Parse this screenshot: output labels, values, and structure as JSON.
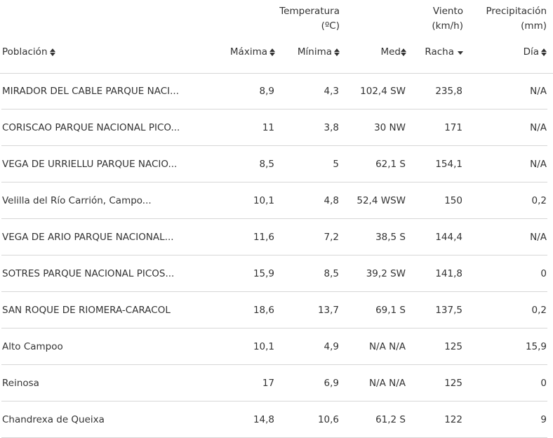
{
  "header": {
    "groups": {
      "temperatura": [
        "Temperatura",
        "(ºC)"
      ],
      "viento": [
        "Viento",
        "(km/h)"
      ],
      "precipitacion": [
        "Precipitación",
        "(mm)"
      ]
    },
    "columns": {
      "poblacion": "Población",
      "maxima": "Máxima",
      "minima": "Mínima",
      "med": "Med",
      "racha": "Racha",
      "dia": "Día"
    }
  },
  "rows": [
    {
      "poblacion": "MIRADOR DEL CABLE PARQUE NACI...",
      "maxima": "8,9",
      "minima": "4,3",
      "med": "102,4 SW",
      "racha": "235,8",
      "dia": "N/A"
    },
    {
      "poblacion": "CORISCAO PARQUE NACIONAL PICO...",
      "maxima": "11",
      "minima": "3,8",
      "med": "30 NW",
      "racha": "171",
      "dia": "N/A"
    },
    {
      "poblacion": "VEGA DE URRIELLU PARQUE NACIO...",
      "maxima": "8,5",
      "minima": "5",
      "med": "62,1 S",
      "racha": "154,1",
      "dia": "N/A"
    },
    {
      "poblacion": "Velilla del Río Carrión, Campo...",
      "maxima": "10,1",
      "minima": "4,8",
      "med": "52,4 WSW",
      "racha": "150",
      "dia": "0,2"
    },
    {
      "poblacion": "VEGA DE ARIO PARQUE NACIONAL...",
      "maxima": "11,6",
      "minima": "7,2",
      "med": "38,5 S",
      "racha": "144,4",
      "dia": "N/A"
    },
    {
      "poblacion": "SOTRES PARQUE NACIONAL PICOS...",
      "maxima": "15,9",
      "minima": "8,5",
      "med": "39,2 SW",
      "racha": "141,8",
      "dia": "0"
    },
    {
      "poblacion": "SAN ROQUE DE RIOMERA-CARACOL",
      "maxima": "18,6",
      "minima": "13,7",
      "med": "69,1 S",
      "racha": "137,5",
      "dia": "0,2"
    },
    {
      "poblacion": "Alto Campoo",
      "maxima": "10,1",
      "minima": "4,9",
      "med": "N/A N/A",
      "racha": "125",
      "dia": "15,9"
    },
    {
      "poblacion": "Reinosa",
      "maxima": "17",
      "minima": "6,9",
      "med": "N/A N/A",
      "racha": "125",
      "dia": "0"
    },
    {
      "poblacion": "Chandrexa de Queixa",
      "maxima": "14,8",
      "minima": "10,6",
      "med": "61,2 S",
      "racha": "122",
      "dia": "9"
    }
  ]
}
